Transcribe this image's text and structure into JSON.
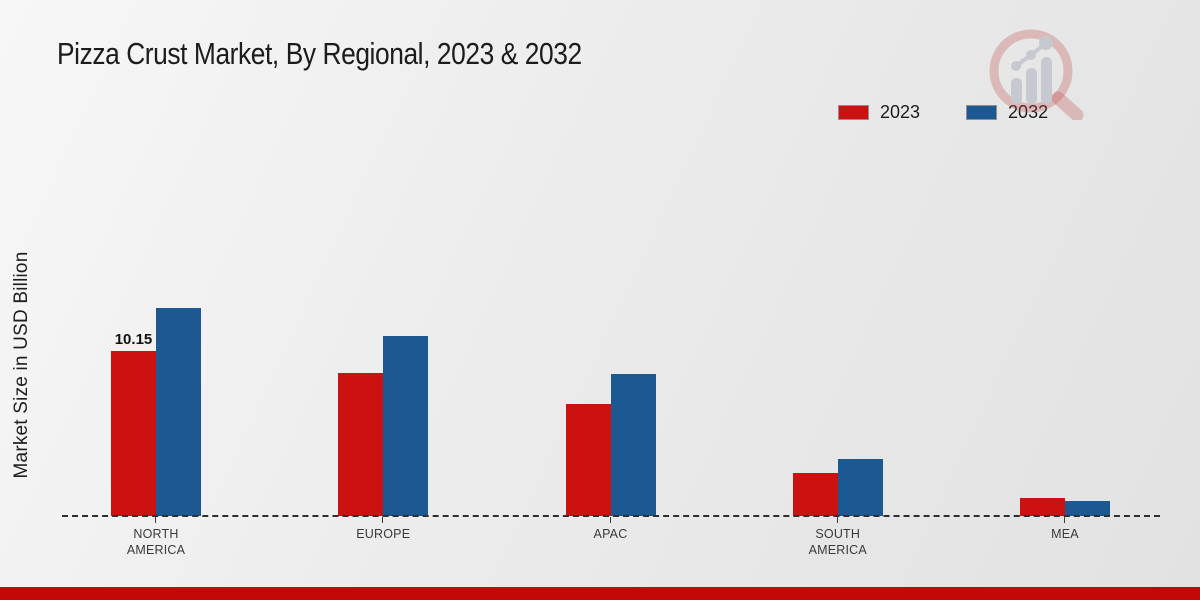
{
  "chart_data": {
    "type": "bar",
    "title": "Pizza Crust Market, By Regional, 2023 & 2032",
    "ylabel": "Market Size in USD Billion",
    "xlabel": "",
    "unit": "USD Billion",
    "categories": [
      "NORTH AMERICA",
      "EUROPE",
      "APAC",
      "SOUTH AMERICA",
      "MEA"
    ],
    "series": [
      {
        "name": "2023",
        "color": "#CC1111",
        "values": [
          10.15,
          8.8,
          6.9,
          2.65,
          1.1
        ]
      },
      {
        "name": "2032",
        "color": "#1C5891",
        "values": [
          12.8,
          11.05,
          8.75,
          3.5,
          0.9
        ]
      }
    ],
    "point_labels": [
      {
        "category_index": 0,
        "series_index": 0,
        "text": "10.15"
      }
    ],
    "ylim": [
      0,
      13
    ],
    "grid": false,
    "y_axis_ticks_visible": false,
    "baseline_style": "dashed",
    "legend_position": "top-right"
  },
  "branding": {
    "logo_icon": "magnifier-bar-chart-watermark",
    "footer_band_color": "#C40707"
  }
}
